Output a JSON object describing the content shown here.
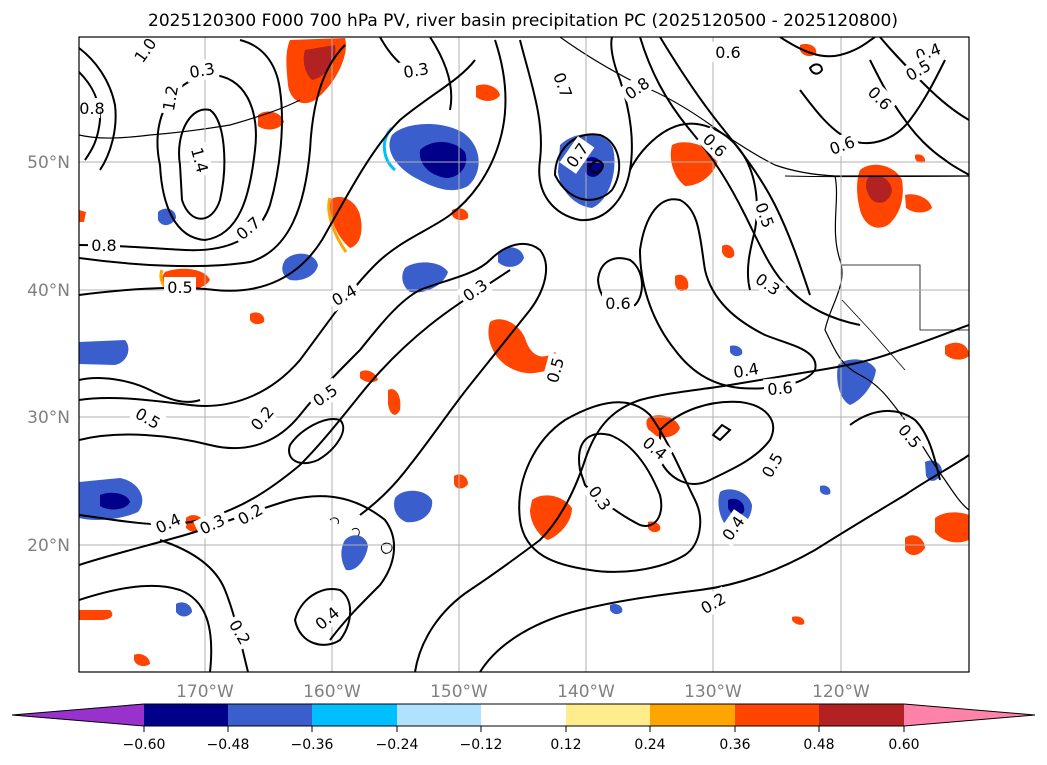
{
  "title": "2025120300 F000 700 hPa PV, river basin precipitation PC (2025120500 - 2025120800)",
  "map": {
    "lon_labels": [
      "170°W",
      "160°W",
      "150°W",
      "140°W",
      "130°W",
      "120°W"
    ],
    "lat_labels": [
      "50°N",
      "40°N",
      "30°N",
      "20°N"
    ],
    "grid": true
  },
  "colorbar": {
    "ticks": [
      "−0.60",
      "−0.48",
      "−0.36",
      "−0.24",
      "−0.12",
      "0.12",
      "0.24",
      "0.36",
      "0.48",
      "0.60"
    ],
    "colors": [
      "#9932cc",
      "#00008b",
      "#3a5fcd",
      "#00bfff",
      "#b0e2ff",
      "#ffffff",
      "#ffec8b",
      "#ffa500",
      "#ff4500",
      "#b22222",
      "#ff82ab"
    ],
    "extend": "both"
  },
  "contour_labels": [
    {
      "text": "1.0"
    },
    {
      "text": "1.2"
    },
    {
      "text": "1.4"
    },
    {
      "text": "0.8"
    },
    {
      "text": "0.7"
    },
    {
      "text": "0.8"
    },
    {
      "text": "0.5"
    },
    {
      "text": "0.4"
    },
    {
      "text": "0.3"
    },
    {
      "text": "0.5"
    },
    {
      "text": "0.2"
    },
    {
      "text": "0.5"
    },
    {
      "text": "0.4"
    },
    {
      "text": "0.3"
    },
    {
      "text": "0.2"
    },
    {
      "text": "0.4"
    },
    {
      "text": "0.2"
    },
    {
      "text": "0.5"
    },
    {
      "text": "0.3"
    },
    {
      "text": "0.7"
    },
    {
      "text": "0.6"
    },
    {
      "text": "0.7"
    },
    {
      "text": "0.6"
    },
    {
      "text": "0.5"
    },
    {
      "text": "0.3"
    },
    {
      "text": "0.4"
    },
    {
      "text": "0.6"
    },
    {
      "text": "0.4"
    },
    {
      "text": "0.3"
    },
    {
      "text": "0.5"
    },
    {
      "text": "0.4"
    },
    {
      "text": "0.2"
    },
    {
      "text": "0.6"
    },
    {
      "text": "0.4"
    },
    {
      "text": "0.6"
    },
    {
      "text": "0.5"
    },
    {
      "text": "0.6"
    },
    {
      "text": "0.5"
    },
    {
      "text": "0.8"
    },
    {
      "text": "0.3"
    }
  ]
}
